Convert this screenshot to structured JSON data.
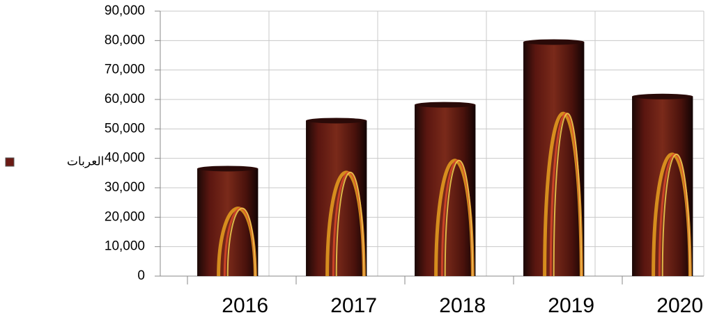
{
  "chart_data": {
    "type": "bar",
    "categories": [
      "2016",
      "2017",
      "2018",
      "2019",
      "2020"
    ],
    "series": [
      {
        "name": "العربات",
        "color": "#6b1a14",
        "values": [
          36500,
          52800,
          58200,
          79500,
          61000
        ]
      }
    ],
    "ylim": [
      0,
      90000
    ],
    "yticks": [
      0,
      {
        "value": 10000,
        "label": "10,000"
      },
      {
        "value": 20000,
        "label": "20,000"
      },
      {
        "value": 30000,
        "label": "30,000"
      },
      {
        "value": 40000,
        "label": "40,000"
      },
      {
        "value": 50000,
        "label": "50,000"
      },
      {
        "value": 60000,
        "label": "60,000"
      },
      {
        "value": 70000,
        "label": "70,000"
      },
      {
        "value": 80000,
        "label": "80,000"
      },
      {
        "value": 90000,
        "label": "90,000"
      }
    ],
    "grid": true,
    "legend": "left"
  }
}
